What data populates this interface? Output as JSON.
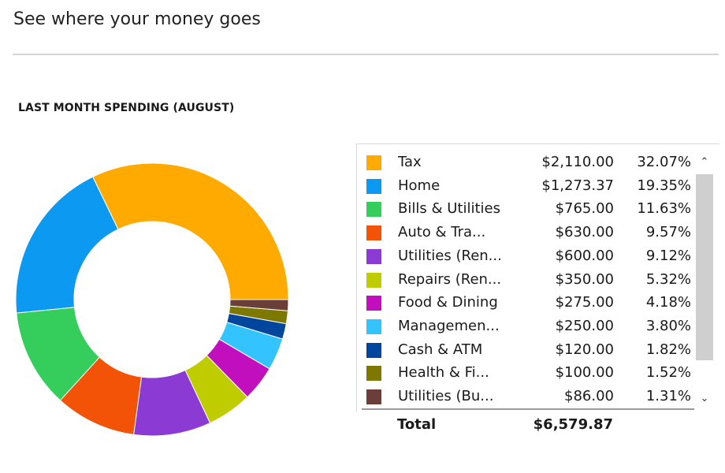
{
  "page": {
    "title": "See where your money goes",
    "section_heading": "LAST MONTH SPENDING (AUGUST)"
  },
  "legend_rows": [
    {
      "label": "Tax",
      "amount": "$2,110.00",
      "pct": "32.07%",
      "color": "#FFAA00"
    },
    {
      "label": "Home",
      "amount": "$1,273.37",
      "pct": "19.35%",
      "color": "#0C99F2"
    },
    {
      "label": "Bills & Utilities",
      "amount": "$765.00",
      "pct": "11.63%",
      "color": "#35CE5C"
    },
    {
      "label": "Auto & Tra...",
      "amount": "$630.00",
      "pct": "9.57%",
      "color": "#F25306"
    },
    {
      "label": "Utilities (Ren...",
      "amount": "$600.00",
      "pct": "9.12%",
      "color": "#8B3AD4"
    },
    {
      "label": "Repairs (Ren...",
      "amount": "$350.00",
      "pct": "5.32%",
      "color": "#BFCC00"
    },
    {
      "label": "Food & Dining",
      "amount": "$275.00",
      "pct": "4.18%",
      "color": "#C10FBE"
    },
    {
      "label": "Managemen...",
      "amount": "$250.00",
      "pct": "3.80%",
      "color": "#33C4FF"
    },
    {
      "label": "Cash & ATM",
      "amount": "$120.00",
      "pct": "1.82%",
      "color": "#00469C"
    },
    {
      "label": "Health & Fi...",
      "amount": "$100.00",
      "pct": "1.52%",
      "color": "#7D7800"
    },
    {
      "label": "Utilities (Bu...",
      "amount": "$86.00",
      "pct": "1.31%",
      "color": "#6B3F37"
    }
  ],
  "total": {
    "label": "Total",
    "amount": "$6,579.87"
  },
  "scrollbar": {
    "up_icon": "chevron-up-icon",
    "down_icon": "chevron-down-icon"
  },
  "chart_data": {
    "type": "pie",
    "title": "LAST MONTH SPENDING (AUGUST)",
    "categories": [
      "Tax",
      "Home",
      "Bills & Utilities",
      "Auto & Tra...",
      "Utilities (Ren...",
      "Repairs (Ren...",
      "Food & Dining",
      "Managemen...",
      "Cash & ATM",
      "Health & Fi...",
      "Utilities (Bu..."
    ],
    "values": [
      2110.0,
      1273.37,
      765.0,
      630.0,
      600.0,
      350.0,
      275.0,
      250.0,
      120.0,
      100.0,
      86.0
    ],
    "percents": [
      32.07,
      19.35,
      11.63,
      9.57,
      9.12,
      5.32,
      4.18,
      3.8,
      1.82,
      1.52,
      1.31
    ],
    "colors": [
      "#FFAA00",
      "#0C99F2",
      "#35CE5C",
      "#F25306",
      "#8B3AD4",
      "#BFCC00",
      "#C10FBE",
      "#33C4FF",
      "#00469C",
      "#7D7800",
      "#6B3F37"
    ],
    "total": 6579.87,
    "donut": true
  }
}
